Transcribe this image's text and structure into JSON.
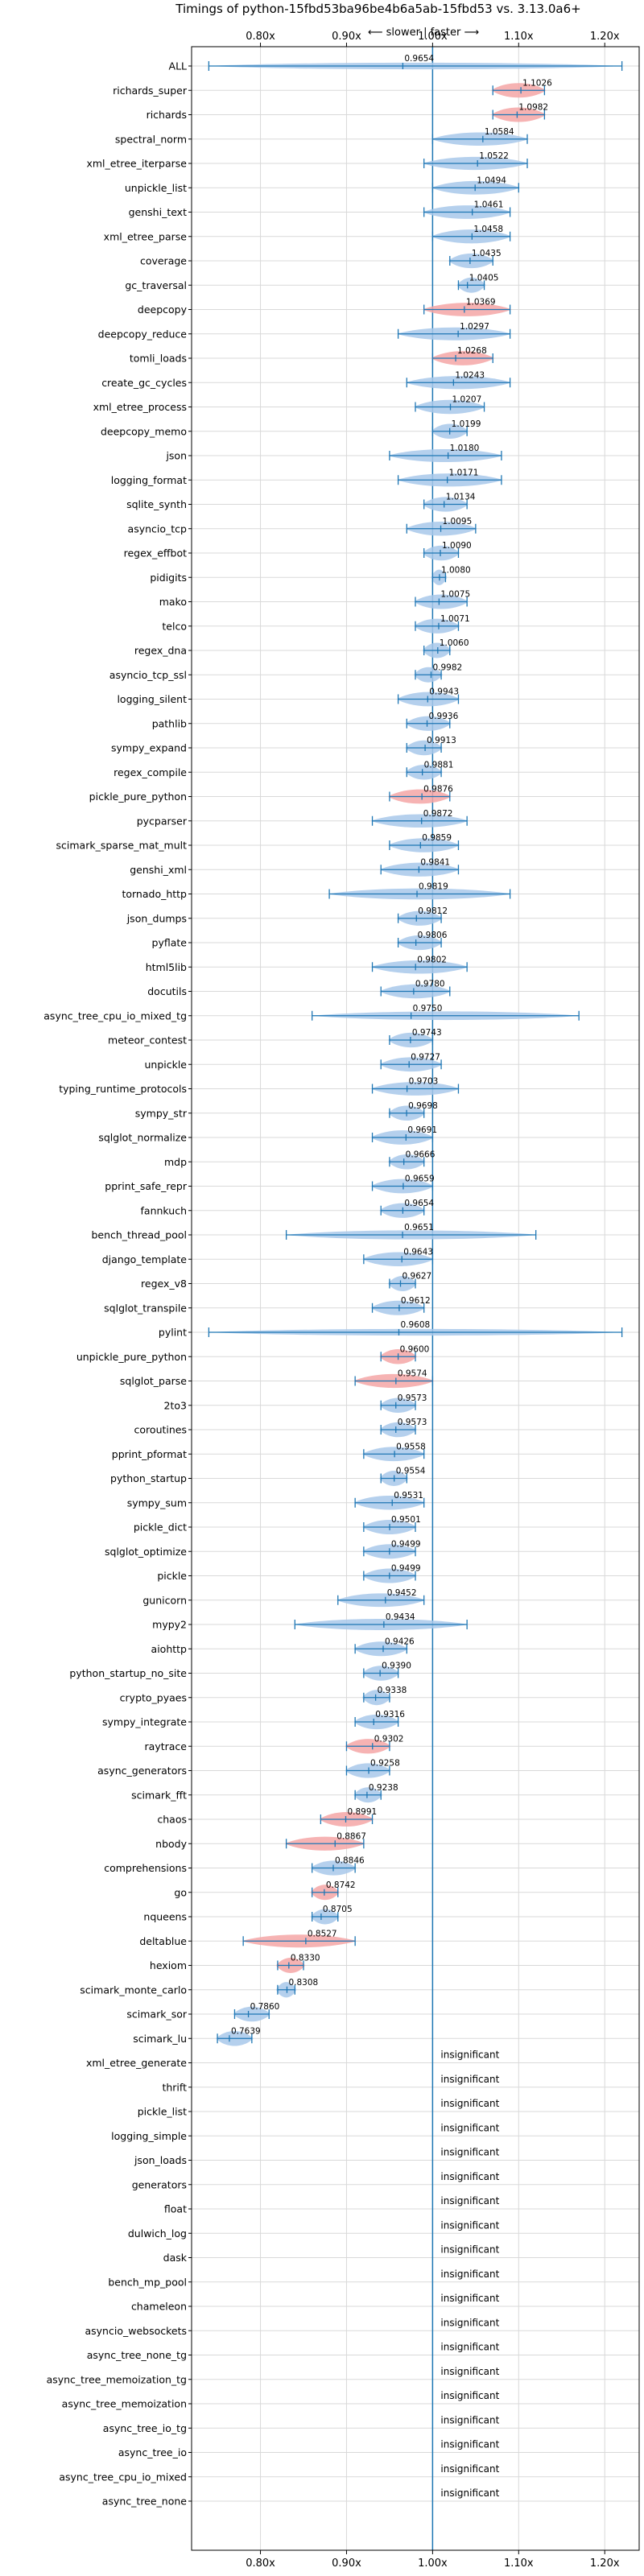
{
  "chart_data": {
    "type": "violin",
    "title": "Timings of python-15fbd53ba96be4b6a5ab-15fbd53 vs. 3.13.0a6+",
    "direction_label": "⟵ slower | faster ⟶",
    "xlim": [
      0.72,
      1.24
    ],
    "reference_x": 1.0,
    "x_ticks": [
      0.8,
      0.9,
      1.0,
      1.1,
      1.2
    ],
    "x_tick_labels": [
      "0.80x",
      "0.90x",
      "1.00x",
      "1.10x",
      "1.20x"
    ],
    "grid": true,
    "insignificant_label": "insignificant",
    "colors": {
      "faster": "#f4a6a6",
      "neutral": "#a8c8ea",
      "line": "#1f77b4",
      "grid": "#d9d9d9"
    },
    "benchmarks": [
      {
        "name": "ALL",
        "value": 0.9654,
        "low": 0.74,
        "high": 1.22,
        "significant": true,
        "faster": false
      },
      {
        "name": "richards_super",
        "value": 1.1026,
        "low": 1.07,
        "high": 1.13,
        "significant": true,
        "faster": true
      },
      {
        "name": "richards",
        "value": 1.0982,
        "low": 1.07,
        "high": 1.13,
        "significant": true,
        "faster": true
      },
      {
        "name": "spectral_norm",
        "value": 1.0584,
        "low": 1.0,
        "high": 1.11,
        "significant": true,
        "faster": false
      },
      {
        "name": "xml_etree_iterparse",
        "value": 1.0522,
        "low": 0.99,
        "high": 1.11,
        "significant": true,
        "faster": false
      },
      {
        "name": "unpickle_list",
        "value": 1.0494,
        "low": 1.0,
        "high": 1.1,
        "significant": true,
        "faster": false
      },
      {
        "name": "genshi_text",
        "value": 1.0461,
        "low": 0.99,
        "high": 1.09,
        "significant": true,
        "faster": false
      },
      {
        "name": "xml_etree_parse",
        "value": 1.0458,
        "low": 1.0,
        "high": 1.09,
        "significant": true,
        "faster": false
      },
      {
        "name": "coverage",
        "value": 1.0435,
        "low": 1.02,
        "high": 1.07,
        "significant": true,
        "faster": false
      },
      {
        "name": "gc_traversal",
        "value": 1.0405,
        "low": 1.03,
        "high": 1.06,
        "significant": true,
        "faster": false
      },
      {
        "name": "deepcopy",
        "value": 1.0369,
        "low": 0.99,
        "high": 1.09,
        "significant": true,
        "faster": true
      },
      {
        "name": "deepcopy_reduce",
        "value": 1.0297,
        "low": 0.96,
        "high": 1.09,
        "significant": true,
        "faster": false
      },
      {
        "name": "tomli_loads",
        "value": 1.0268,
        "low": 1.0,
        "high": 1.07,
        "significant": true,
        "faster": true
      },
      {
        "name": "create_gc_cycles",
        "value": 1.0243,
        "low": 0.97,
        "high": 1.09,
        "significant": true,
        "faster": false
      },
      {
        "name": "xml_etree_process",
        "value": 1.0207,
        "low": 0.98,
        "high": 1.06,
        "significant": true,
        "faster": false
      },
      {
        "name": "deepcopy_memo",
        "value": 1.0199,
        "low": 1.0,
        "high": 1.04,
        "significant": true,
        "faster": false
      },
      {
        "name": "json",
        "value": 1.018,
        "low": 0.95,
        "high": 1.08,
        "significant": true,
        "faster": false
      },
      {
        "name": "logging_format",
        "value": 1.0171,
        "low": 0.96,
        "high": 1.08,
        "significant": true,
        "faster": false
      },
      {
        "name": "sqlite_synth",
        "value": 1.0134,
        "low": 0.99,
        "high": 1.04,
        "significant": true,
        "faster": false
      },
      {
        "name": "asyncio_tcp",
        "value": 1.0095,
        "low": 0.97,
        "high": 1.05,
        "significant": true,
        "faster": false
      },
      {
        "name": "regex_effbot",
        "value": 1.009,
        "low": 0.99,
        "high": 1.03,
        "significant": true,
        "faster": false
      },
      {
        "name": "pidigits",
        "value": 1.008,
        "low": 1.0,
        "high": 1.015,
        "significant": true,
        "faster": false
      },
      {
        "name": "mako",
        "value": 1.0075,
        "low": 0.98,
        "high": 1.04,
        "significant": true,
        "faster": false
      },
      {
        "name": "telco",
        "value": 1.0071,
        "low": 0.98,
        "high": 1.03,
        "significant": true,
        "faster": false
      },
      {
        "name": "regex_dna",
        "value": 1.006,
        "low": 0.99,
        "high": 1.02,
        "significant": true,
        "faster": false
      },
      {
        "name": "asyncio_tcp_ssl",
        "value": 0.9982,
        "low": 0.98,
        "high": 1.01,
        "significant": true,
        "faster": false
      },
      {
        "name": "logging_silent",
        "value": 0.9943,
        "low": 0.96,
        "high": 1.03,
        "significant": true,
        "faster": false
      },
      {
        "name": "pathlib",
        "value": 0.9936,
        "low": 0.97,
        "high": 1.02,
        "significant": true,
        "faster": false
      },
      {
        "name": "sympy_expand",
        "value": 0.9913,
        "low": 0.97,
        "high": 1.01,
        "significant": true,
        "faster": false
      },
      {
        "name": "regex_compile",
        "value": 0.9881,
        "low": 0.97,
        "high": 1.01,
        "significant": true,
        "faster": false
      },
      {
        "name": "pickle_pure_python",
        "value": 0.9876,
        "low": 0.95,
        "high": 1.02,
        "significant": true,
        "faster": true
      },
      {
        "name": "pycparser",
        "value": 0.9872,
        "low": 0.93,
        "high": 1.04,
        "significant": true,
        "faster": false
      },
      {
        "name": "scimark_sparse_mat_mult",
        "value": 0.9859,
        "low": 0.95,
        "high": 1.03,
        "significant": true,
        "faster": false
      },
      {
        "name": "genshi_xml",
        "value": 0.9841,
        "low": 0.94,
        "high": 1.03,
        "significant": true,
        "faster": false
      },
      {
        "name": "tornado_http",
        "value": 0.9819,
        "low": 0.88,
        "high": 1.09,
        "significant": true,
        "faster": false
      },
      {
        "name": "json_dumps",
        "value": 0.9812,
        "low": 0.96,
        "high": 1.01,
        "significant": true,
        "faster": false
      },
      {
        "name": "pyflate",
        "value": 0.9806,
        "low": 0.96,
        "high": 1.01,
        "significant": true,
        "faster": false
      },
      {
        "name": "html5lib",
        "value": 0.9802,
        "low": 0.93,
        "high": 1.04,
        "significant": true,
        "faster": false
      },
      {
        "name": "docutils",
        "value": 0.978,
        "low": 0.94,
        "high": 1.02,
        "significant": true,
        "faster": false
      },
      {
        "name": "async_tree_cpu_io_mixed_tg",
        "value": 0.975,
        "low": 0.86,
        "high": 1.17,
        "significant": true,
        "faster": false
      },
      {
        "name": "meteor_contest",
        "value": 0.9743,
        "low": 0.95,
        "high": 1.0,
        "significant": true,
        "faster": false
      },
      {
        "name": "unpickle",
        "value": 0.9727,
        "low": 0.94,
        "high": 1.01,
        "significant": true,
        "faster": false
      },
      {
        "name": "typing_runtime_protocols",
        "value": 0.9703,
        "low": 0.93,
        "high": 1.03,
        "significant": true,
        "faster": false
      },
      {
        "name": "sympy_str",
        "value": 0.9698,
        "low": 0.95,
        "high": 0.99,
        "significant": true,
        "faster": false
      },
      {
        "name": "sqlglot_normalize",
        "value": 0.9691,
        "low": 0.93,
        "high": 1.0,
        "significant": true,
        "faster": false
      },
      {
        "name": "mdp",
        "value": 0.9666,
        "low": 0.95,
        "high": 0.99,
        "significant": true,
        "faster": false
      },
      {
        "name": "pprint_safe_repr",
        "value": 0.9659,
        "low": 0.93,
        "high": 1.0,
        "significant": true,
        "faster": false
      },
      {
        "name": "fannkuch",
        "value": 0.9654,
        "low": 0.94,
        "high": 0.99,
        "significant": true,
        "faster": false
      },
      {
        "name": "bench_thread_pool",
        "value": 0.9651,
        "low": 0.83,
        "high": 1.12,
        "significant": true,
        "faster": false
      },
      {
        "name": "django_template",
        "value": 0.9643,
        "low": 0.92,
        "high": 1.0,
        "significant": true,
        "faster": false
      },
      {
        "name": "regex_v8",
        "value": 0.9627,
        "low": 0.95,
        "high": 0.98,
        "significant": true,
        "faster": false
      },
      {
        "name": "sqlglot_transpile",
        "value": 0.9612,
        "low": 0.93,
        "high": 0.99,
        "significant": true,
        "faster": false
      },
      {
        "name": "pylint",
        "value": 0.9608,
        "low": 0.74,
        "high": 1.22,
        "significant": true,
        "faster": false
      },
      {
        "name": "unpickle_pure_python",
        "value": 0.96,
        "low": 0.94,
        "high": 0.98,
        "significant": true,
        "faster": true
      },
      {
        "name": "sqlglot_parse",
        "value": 0.9574,
        "low": 0.91,
        "high": 1.0,
        "significant": true,
        "faster": true
      },
      {
        "name": "2to3",
        "value": 0.9573,
        "low": 0.94,
        "high": 0.98,
        "significant": true,
        "faster": false
      },
      {
        "name": "coroutines",
        "value": 0.9573,
        "low": 0.94,
        "high": 0.98,
        "significant": true,
        "faster": false
      },
      {
        "name": "pprint_pformat",
        "value": 0.9558,
        "low": 0.92,
        "high": 0.99,
        "significant": true,
        "faster": false
      },
      {
        "name": "python_startup",
        "value": 0.9554,
        "low": 0.94,
        "high": 0.97,
        "significant": true,
        "faster": false
      },
      {
        "name": "sympy_sum",
        "value": 0.9531,
        "low": 0.91,
        "high": 0.99,
        "significant": true,
        "faster": false
      },
      {
        "name": "pickle_dict",
        "value": 0.9501,
        "low": 0.92,
        "high": 0.98,
        "significant": true,
        "faster": false
      },
      {
        "name": "sqlglot_optimize",
        "value": 0.9499,
        "low": 0.92,
        "high": 0.98,
        "significant": true,
        "faster": false
      },
      {
        "name": "pickle",
        "value": 0.9499,
        "low": 0.92,
        "high": 0.98,
        "significant": true,
        "faster": false
      },
      {
        "name": "gunicorn",
        "value": 0.9452,
        "low": 0.89,
        "high": 0.99,
        "significant": true,
        "faster": false
      },
      {
        "name": "mypy2",
        "value": 0.9434,
        "low": 0.84,
        "high": 1.04,
        "significant": true,
        "faster": false
      },
      {
        "name": "aiohttp",
        "value": 0.9426,
        "low": 0.91,
        "high": 0.97,
        "significant": true,
        "faster": false
      },
      {
        "name": "python_startup_no_site",
        "value": 0.939,
        "low": 0.92,
        "high": 0.96,
        "significant": true,
        "faster": false
      },
      {
        "name": "crypto_pyaes",
        "value": 0.9338,
        "low": 0.92,
        "high": 0.95,
        "significant": true,
        "faster": false
      },
      {
        "name": "sympy_integrate",
        "value": 0.9316,
        "low": 0.91,
        "high": 0.96,
        "significant": true,
        "faster": false
      },
      {
        "name": "raytrace",
        "value": 0.9302,
        "low": 0.9,
        "high": 0.95,
        "significant": true,
        "faster": true
      },
      {
        "name": "async_generators",
        "value": 0.9258,
        "low": 0.9,
        "high": 0.95,
        "significant": true,
        "faster": false
      },
      {
        "name": "scimark_fft",
        "value": 0.9238,
        "low": 0.91,
        "high": 0.94,
        "significant": true,
        "faster": false
      },
      {
        "name": "chaos",
        "value": 0.8991,
        "low": 0.87,
        "high": 0.93,
        "significant": true,
        "faster": true
      },
      {
        "name": "nbody",
        "value": 0.8867,
        "low": 0.83,
        "high": 0.92,
        "significant": true,
        "faster": true
      },
      {
        "name": "comprehensions",
        "value": 0.8846,
        "low": 0.86,
        "high": 0.91,
        "significant": true,
        "faster": false
      },
      {
        "name": "go",
        "value": 0.8742,
        "low": 0.86,
        "high": 0.89,
        "significant": true,
        "faster": true
      },
      {
        "name": "nqueens",
        "value": 0.8705,
        "low": 0.86,
        "high": 0.89,
        "significant": true,
        "faster": false
      },
      {
        "name": "deltablue",
        "value": 0.8527,
        "low": 0.78,
        "high": 0.91,
        "significant": true,
        "faster": true
      },
      {
        "name": "hexiom",
        "value": 0.833,
        "low": 0.82,
        "high": 0.85,
        "significant": true,
        "faster": true
      },
      {
        "name": "scimark_monte_carlo",
        "value": 0.8308,
        "low": 0.82,
        "high": 0.84,
        "significant": true,
        "faster": false
      },
      {
        "name": "scimark_sor",
        "value": 0.786,
        "low": 0.77,
        "high": 0.81,
        "significant": true,
        "faster": false
      },
      {
        "name": "scimark_lu",
        "value": 0.7639,
        "low": 0.75,
        "high": 0.79,
        "significant": true,
        "faster": false
      },
      {
        "name": "xml_etree_generate",
        "significant": false
      },
      {
        "name": "thrift",
        "significant": false
      },
      {
        "name": "pickle_list",
        "significant": false
      },
      {
        "name": "logging_simple",
        "significant": false
      },
      {
        "name": "json_loads",
        "significant": false
      },
      {
        "name": "generators",
        "significant": false
      },
      {
        "name": "float",
        "significant": false
      },
      {
        "name": "dulwich_log",
        "significant": false
      },
      {
        "name": "dask",
        "significant": false
      },
      {
        "name": "bench_mp_pool",
        "significant": false
      },
      {
        "name": "chameleon",
        "significant": false
      },
      {
        "name": "asyncio_websockets",
        "significant": false
      },
      {
        "name": "async_tree_none_tg",
        "significant": false
      },
      {
        "name": "async_tree_memoization_tg",
        "significant": false
      },
      {
        "name": "async_tree_memoization",
        "significant": false
      },
      {
        "name": "async_tree_io_tg",
        "significant": false
      },
      {
        "name": "async_tree_io",
        "significant": false
      },
      {
        "name": "async_tree_cpu_io_mixed",
        "significant": false
      },
      {
        "name": "async_tree_none",
        "significant": false
      }
    ]
  }
}
